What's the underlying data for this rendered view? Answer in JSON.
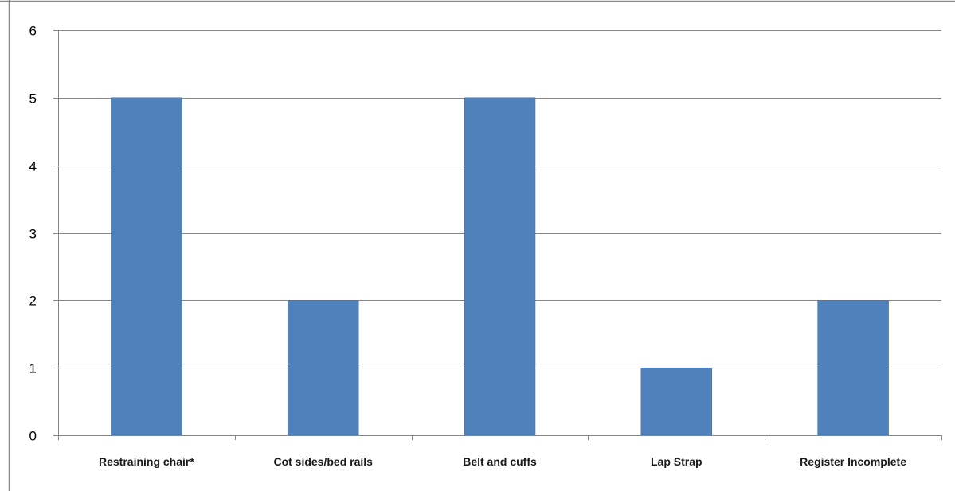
{
  "chart_data": {
    "type": "bar",
    "categories": [
      "Restraining chair*",
      "Cot sides/bed rails",
      "Belt and cuffs",
      "Lap Strap",
      "Register Incomplete"
    ],
    "values": [
      5,
      2,
      5,
      1,
      2
    ],
    "title": "",
    "xlabel": "",
    "ylabel": "",
    "ylim": [
      0,
      6
    ],
    "yticks": [
      0,
      1,
      2,
      3,
      4,
      5,
      6
    ],
    "grid": true,
    "legend": "none",
    "colors": {
      "bar": "#4f81bd",
      "bar_edge": "#3e6fa8",
      "grid": "#868686",
      "axis": "#868686",
      "frame": "#8c8c8c"
    }
  }
}
